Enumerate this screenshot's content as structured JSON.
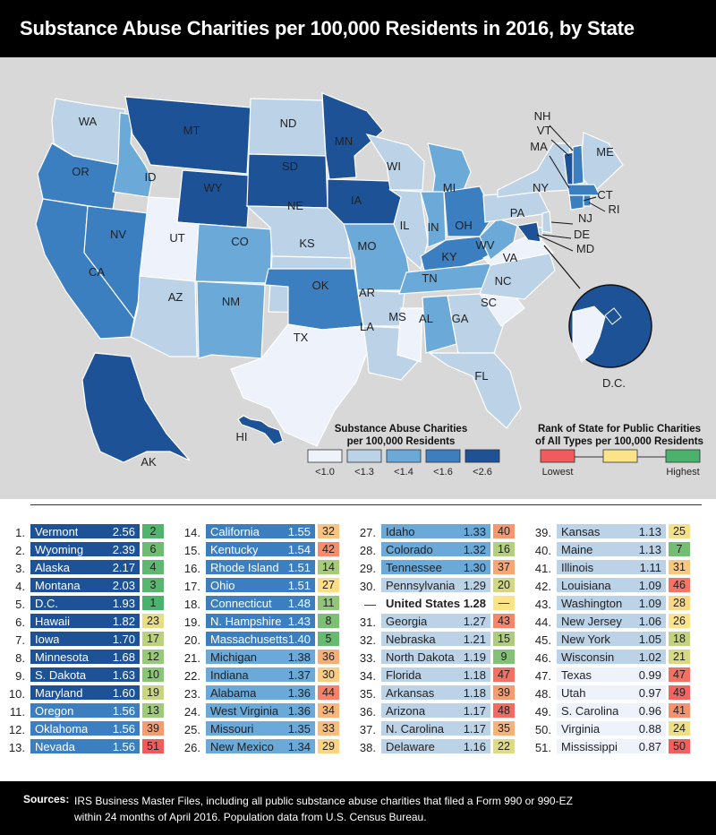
{
  "title": "Substance Abuse Charities per 100,000 Residents in 2016, by State",
  "colors": {
    "c1": "#eef2fb",
    "c2": "#bcd3e7",
    "c3": "#6aa9d8",
    "c4": "#3b7fc0",
    "c5": "#1d5296",
    "rank_low": "#f15b5b",
    "rank_mid": "#fbe388",
    "rank_high": "#4ab26d"
  },
  "legend": {
    "main_title_1": "Substance Abuse Charities",
    "main_title_2": "per 100,000 Residents",
    "bins": [
      "<1.0",
      "<1.3",
      "<1.4",
      "<1.6",
      "<2.6"
    ],
    "rank_title_1": "Rank of State for Public Charities",
    "rank_title_2": "of All Types per 100,000 Residents",
    "rank_low_label": "Lowest",
    "rank_high_label": "Highest"
  },
  "state_labels": {
    "WA": "WA",
    "OR": "OR",
    "CA": "CA",
    "ID": "ID",
    "NV": "NV",
    "MT": "MT",
    "WY": "WY",
    "UT": "UT",
    "AZ": "AZ",
    "CO": "CO",
    "NM": "NM",
    "ND": "ND",
    "SD": "SD",
    "NE": "NE",
    "KS": "KS",
    "OK": "OK",
    "TX": "TX",
    "MN": "MN",
    "IA": "IA",
    "MO": "MO",
    "AR": "AR",
    "LA": "LA",
    "WI": "WI",
    "IL": "IL",
    "MS": "MS",
    "MI": "MI",
    "IN": "IN",
    "OH": "OH",
    "KY": "KY",
    "TN": "TN",
    "AL": "AL",
    "GA": "GA",
    "FL": "FL",
    "SC": "SC",
    "NC": "NC",
    "VA": "VA",
    "WV": "WV",
    "PA": "PA",
    "NY": "NY",
    "ME": "ME",
    "NH": "NH",
    "VT": "VT",
    "MA": "MA",
    "CT": "CT",
    "RI": "RI",
    "NJ": "NJ",
    "DE": "DE",
    "MD": "MD",
    "AK": "AK",
    "HI": "HI",
    "DC": "D.C."
  },
  "chart_data": {
    "type": "table",
    "columns": [
      "rank",
      "state",
      "charities_per_100k",
      "rank_all_public_charities"
    ],
    "rows": [
      [
        "1.",
        "Vermont",
        "2.56",
        "2"
      ],
      [
        "2.",
        "Wyoming",
        "2.39",
        "6"
      ],
      [
        "3.",
        "Alaska",
        "2.17",
        "4"
      ],
      [
        "4.",
        "Montana",
        "2.03",
        "3"
      ],
      [
        "5.",
        "D.C.",
        "1.93",
        "1"
      ],
      [
        "6.",
        "Hawaii",
        "1.82",
        "23"
      ],
      [
        "7.",
        "Iowa",
        "1.70",
        "17"
      ],
      [
        "8.",
        "Minnesota",
        "1.68",
        "12"
      ],
      [
        "9.",
        "S. Dakota",
        "1.63",
        "10"
      ],
      [
        "10.",
        "Maryland",
        "1.60",
        "19"
      ],
      [
        "11.",
        "Oregon",
        "1.56",
        "13"
      ],
      [
        "12.",
        "Oklahoma",
        "1.56",
        "39"
      ],
      [
        "13.",
        "Nevada",
        "1.56",
        "51"
      ],
      [
        "14.",
        "California",
        "1.55",
        "32"
      ],
      [
        "15.",
        "Kentucky",
        "1.54",
        "42"
      ],
      [
        "16.",
        "Rhode Island",
        "1.51",
        "14"
      ],
      [
        "17.",
        "Ohio",
        "1.51",
        "27"
      ],
      [
        "18.",
        "Connecticut",
        "1.48",
        "11"
      ],
      [
        "19.",
        "N. Hampshire",
        "1.43",
        "8"
      ],
      [
        "20.",
        "Massachusetts",
        "1.40",
        "5"
      ],
      [
        "21.",
        "Michigan",
        "1.38",
        "36"
      ],
      [
        "22.",
        "Indiana",
        "1.37",
        "30"
      ],
      [
        "23.",
        "Alabama",
        "1.36",
        "44"
      ],
      [
        "24.",
        "West Virginia",
        "1.36",
        "34"
      ],
      [
        "25.",
        "Missouri",
        "1.35",
        "33"
      ],
      [
        "26.",
        "New Mexico",
        "1.34",
        "29"
      ],
      [
        "27.",
        "Idaho",
        "1.33",
        "40"
      ],
      [
        "28.",
        "Colorado",
        "1.32",
        "16"
      ],
      [
        "29.",
        "Tennessee",
        "1.30",
        "37"
      ],
      [
        "30.",
        "Pennsylvania",
        "1.29",
        "20"
      ],
      [
        "—",
        "United States",
        "1.28",
        "—"
      ],
      [
        "31.",
        "Georgia",
        "1.27",
        "43"
      ],
      [
        "32.",
        "Nebraska",
        "1.21",
        "15"
      ],
      [
        "33.",
        "North Dakota",
        "1.19",
        "9"
      ],
      [
        "34.",
        "Florida",
        "1.18",
        "47"
      ],
      [
        "35.",
        "Arkansas",
        "1.18",
        "39"
      ],
      [
        "36.",
        "Arizona",
        "1.17",
        "48"
      ],
      [
        "37.",
        "N. Carolina",
        "1.17",
        "35"
      ],
      [
        "38.",
        "Delaware",
        "1.16",
        "22"
      ],
      [
        "39.",
        "Kansas",
        "1.13",
        "25"
      ],
      [
        "40.",
        "Maine",
        "1.13",
        "7"
      ],
      [
        "41.",
        "Illinois",
        "1.11",
        "31"
      ],
      [
        "42.",
        "Louisiana",
        "1.09",
        "46"
      ],
      [
        "43.",
        "Washington",
        "1.09",
        "28"
      ],
      [
        "44.",
        "New Jersey",
        "1.06",
        "26"
      ],
      [
        "45.",
        "New York",
        "1.05",
        "18"
      ],
      [
        "46.",
        "Wisconsin",
        "1.02",
        "21"
      ],
      [
        "47.",
        "Texas",
        "0.99",
        "47"
      ],
      [
        "48.",
        "Utah",
        "0.97",
        "49"
      ],
      [
        "49.",
        "S. Carolina",
        "0.96",
        "41"
      ],
      [
        "50.",
        "Virginia",
        "0.88",
        "24"
      ],
      [
        "51.",
        "Mississippi",
        "0.87",
        "50"
      ]
    ],
    "bins": [
      1.0,
      1.3,
      1.4,
      1.6,
      2.6
    ]
  },
  "sources": {
    "label": "Sources:",
    "line1": "IRS Business Master Files, including all public substance abuse charities that filed a Form 990 or 990-EZ",
    "line2": "within 24 months of April 2016. Population data from U.S. Census Bureau."
  }
}
